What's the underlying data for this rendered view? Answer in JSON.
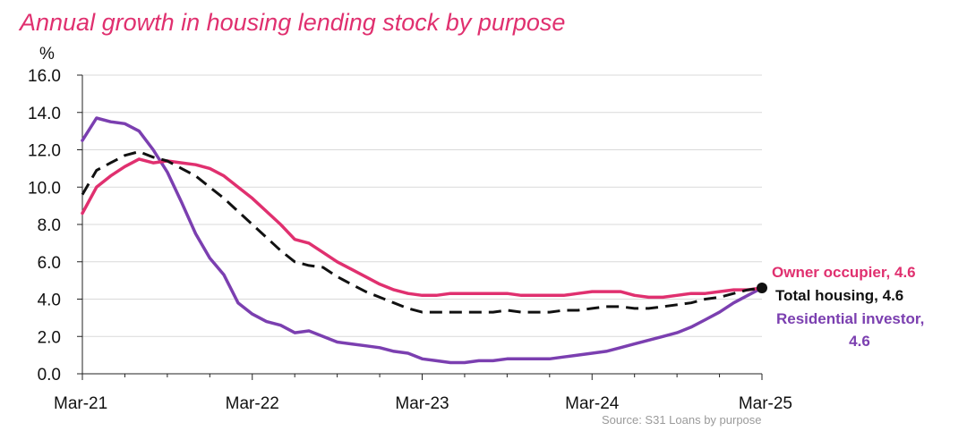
{
  "title": "Annual growth in housing lending stock by purpose",
  "source": "Source: S31 Loans by purpose",
  "chart_data": {
    "type": "line",
    "title": "Annual growth in housing lending stock by purpose",
    "ylabel": "%",
    "ylim": [
      0,
      16
    ],
    "yticks": [
      "0.0",
      "2.0",
      "4.0",
      "6.0",
      "8.0",
      "10.0",
      "12.0",
      "14.0",
      "16.0"
    ],
    "xlim": [
      0,
      48
    ],
    "xticks": [
      {
        "label": "Mar-21",
        "value": 0
      },
      {
        "label": "Mar-22",
        "value": 12
      },
      {
        "label": "Mar-23",
        "value": 24
      },
      {
        "label": "Mar-24",
        "value": 36
      },
      {
        "label": "Mar-25",
        "value": 48
      }
    ],
    "grid": true,
    "series": [
      {
        "name": "Owner occupier",
        "color": "#e0306f",
        "dash": "solid",
        "end_label": [
          "Owner occupier,  4.6"
        ],
        "values": [
          8.6,
          10.0,
          10.6,
          11.1,
          11.5,
          11.3,
          11.4,
          11.3,
          11.2,
          11.0,
          10.6,
          10.0,
          9.4,
          8.7,
          8.0,
          7.2,
          7.0,
          6.5,
          6.0,
          5.6,
          5.2,
          4.8,
          4.5,
          4.3,
          4.2,
          4.2,
          4.3,
          4.3,
          4.3,
          4.3,
          4.3,
          4.2,
          4.2,
          4.2,
          4.2,
          4.3,
          4.4,
          4.4,
          4.4,
          4.2,
          4.1,
          4.1,
          4.2,
          4.3,
          4.3,
          4.4,
          4.5,
          4.5,
          4.6
        ]
      },
      {
        "name": "Total housing",
        "color": "#111111",
        "dash": "dashed",
        "end_label": [
          "Total housing,  4.6"
        ],
        "values": [
          9.6,
          10.9,
          11.3,
          11.7,
          11.9,
          11.6,
          11.4,
          11.0,
          10.6,
          10.0,
          9.4,
          8.7,
          8.0,
          7.3,
          6.6,
          6.0,
          5.8,
          5.7,
          5.2,
          4.8,
          4.4,
          4.1,
          3.8,
          3.5,
          3.3,
          3.3,
          3.3,
          3.3,
          3.3,
          3.3,
          3.4,
          3.3,
          3.3,
          3.3,
          3.4,
          3.4,
          3.5,
          3.6,
          3.6,
          3.5,
          3.5,
          3.6,
          3.7,
          3.8,
          4.0,
          4.1,
          4.3,
          4.5,
          4.6
        ]
      },
      {
        "name": "Residential investor",
        "color": "#7b3fb0",
        "dash": "solid",
        "end_label": [
          "Residential investor,",
          "4.6"
        ],
        "values": [
          12.5,
          13.7,
          13.5,
          13.4,
          13.0,
          12.0,
          10.8,
          9.2,
          7.5,
          6.2,
          5.3,
          3.8,
          3.2,
          2.8,
          2.6,
          2.2,
          2.3,
          2.0,
          1.7,
          1.6,
          1.5,
          1.4,
          1.2,
          1.1,
          0.8,
          0.7,
          0.6,
          0.6,
          0.7,
          0.7,
          0.8,
          0.8,
          0.8,
          0.8,
          0.9,
          1.0,
          1.1,
          1.2,
          1.4,
          1.6,
          1.8,
          2.0,
          2.2,
          2.5,
          2.9,
          3.3,
          3.8,
          4.2,
          4.6
        ]
      }
    ],
    "end_point": {
      "x": 48,
      "y": 4.6,
      "color": "#111111"
    }
  }
}
